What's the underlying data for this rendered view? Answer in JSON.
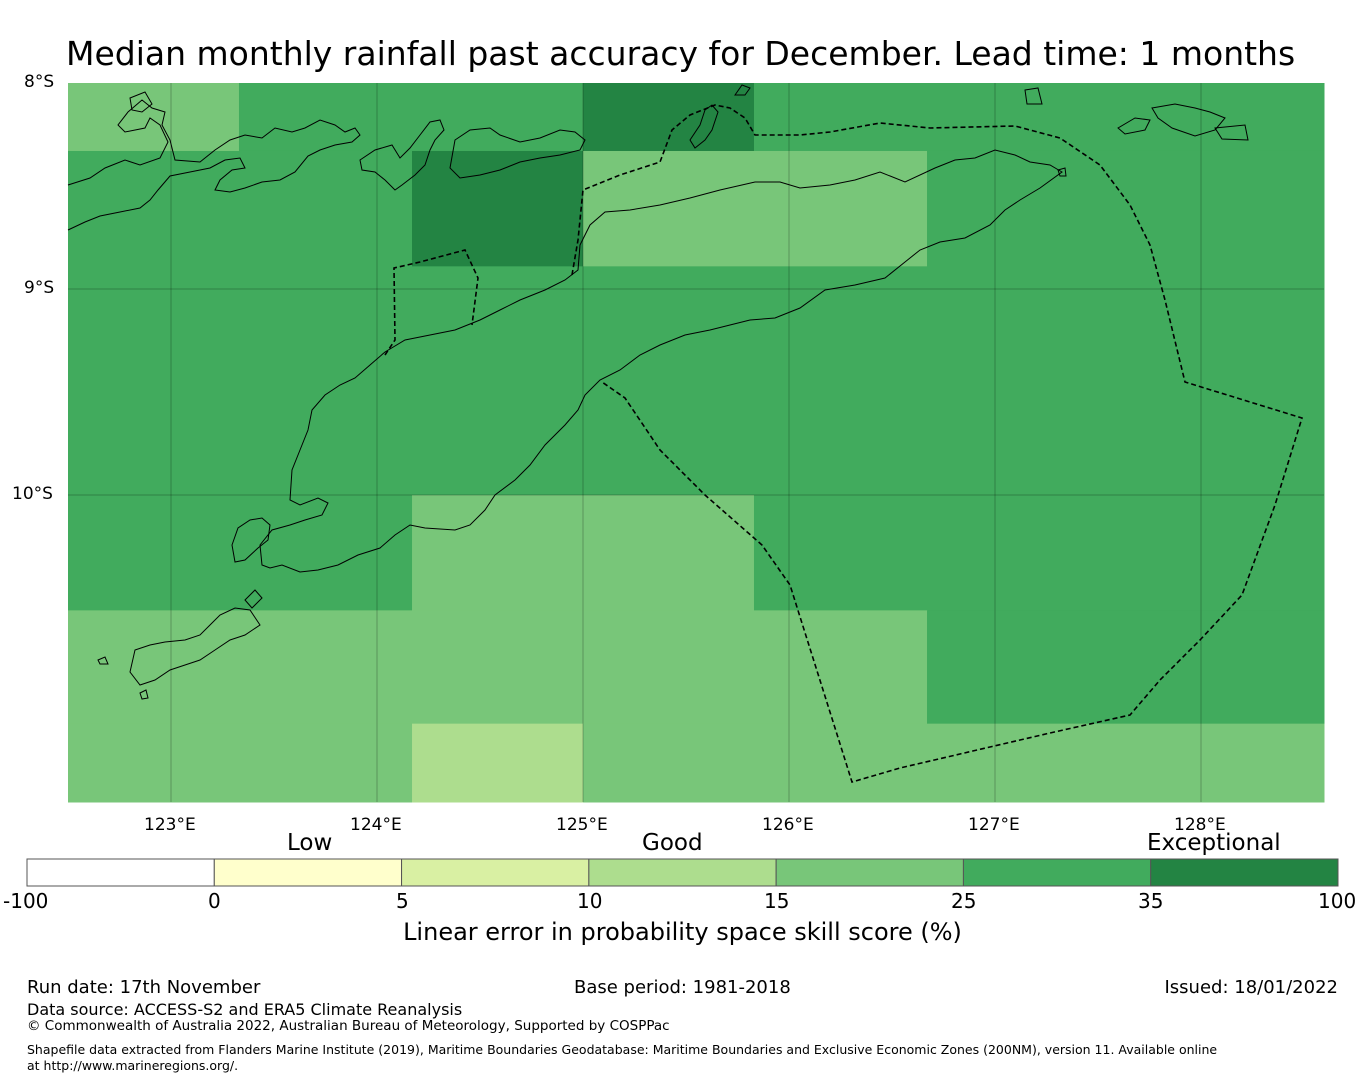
{
  "title": "Median monthly rainfall past accuracy for December. Lead time: 1 months",
  "map": {
    "latitude_labels": [
      "8°S",
      "9°S",
      "10°S"
    ],
    "longitude_labels": [
      "123°E",
      "124°E",
      "125°E",
      "126°E",
      "127°E",
      "128°E"
    ],
    "extent": {
      "lon_min": 122.5,
      "lon_max": 128.6,
      "lat_max": -8.0,
      "lat_min": -11.5
    },
    "skill_cells": [
      {
        "lon": [
          122.5,
          123.33
        ],
        "lat": [
          -8.0,
          -8.33
        ],
        "class": "15-25"
      },
      {
        "lon": [
          123.33,
          125.0
        ],
        "lat": [
          -8.0,
          -8.33
        ],
        "class": "25-35"
      },
      {
        "lon": [
          125.0,
          125.83
        ],
        "lat": [
          -8.0,
          -8.33
        ],
        "class": "35-100"
      },
      {
        "lon": [
          125.83,
          128.6
        ],
        "lat": [
          -8.0,
          -8.33
        ],
        "class": "25-35"
      },
      {
        "lon": [
          122.5,
          124.17
        ],
        "lat": [
          -8.33,
          -8.89
        ],
        "class": "25-35"
      },
      {
        "lon": [
          124.17,
          125.0
        ],
        "lat": [
          -8.33,
          -8.89
        ],
        "class": "35-100"
      },
      {
        "lon": [
          125.0,
          126.67
        ],
        "lat": [
          -8.33,
          -8.89
        ],
        "class": "15-25"
      },
      {
        "lon": [
          126.67,
          128.6
        ],
        "lat": [
          -8.33,
          -8.89
        ],
        "class": "25-35"
      },
      {
        "lon": [
          122.5,
          128.6
        ],
        "lat": [
          -8.89,
          -10.0
        ],
        "class": "25-35"
      },
      {
        "lon": [
          122.5,
          124.17
        ],
        "lat": [
          -10.0,
          -10.56
        ],
        "class": "25-35"
      },
      {
        "lon": [
          124.17,
          125.83
        ],
        "lat": [
          -10.0,
          -10.56
        ],
        "class": "15-25"
      },
      {
        "lon": [
          125.83,
          128.6
        ],
        "lat": [
          -10.0,
          -10.56
        ],
        "class": "25-35"
      },
      {
        "lon": [
          122.5,
          126.67
        ],
        "lat": [
          -10.56,
          -11.11
        ],
        "class": "15-25"
      },
      {
        "lon": [
          126.67,
          128.6
        ],
        "lat": [
          -10.56,
          -11.11
        ],
        "class": "25-35"
      },
      {
        "lon": [
          122.5,
          124.17
        ],
        "lat": [
          -11.11,
          -11.5
        ],
        "class": "15-25"
      },
      {
        "lon": [
          124.17,
          125.0
        ],
        "lat": [
          -11.11,
          -11.5
        ],
        "class": "10-15"
      },
      {
        "lon": [
          125.0,
          128.6
        ],
        "lat": [
          -11.11,
          -11.5
        ],
        "class": "15-25"
      }
    ]
  },
  "colorbar": {
    "categories": [
      "Low",
      "Good",
      "Exceptional"
    ],
    "ticks": [
      "-100",
      "0",
      "5",
      "10",
      "15",
      "25",
      "35",
      "100"
    ],
    "colors": [
      "#ffffff",
      "#ffffcc",
      "#d9f0a3",
      "#addd8e",
      "#78c679",
      "#41ab5d",
      "#238443"
    ],
    "label": "Linear error in probability space skill score (%)"
  },
  "footer": {
    "run_date": "Run date: 17th November",
    "base_period": "Base period: 1981-2018",
    "issued": "Issued: 18/01/2022",
    "data_source": "Data source: ACCESS-S2 and ERA5 Climate Reanalysis",
    "copyright": "© Commonwealth of Australia 2022, Australian Bureau of Meteorology, Supported by COSPPac",
    "shapefile": "Shapefile data extracted from Flanders Marine Institute (2019), Maritime Boundaries Geodatabase: Maritime Boundaries and Exclusive Economic Zones (200NM), version 11. Available online at http://www.marineregions.org/."
  }
}
